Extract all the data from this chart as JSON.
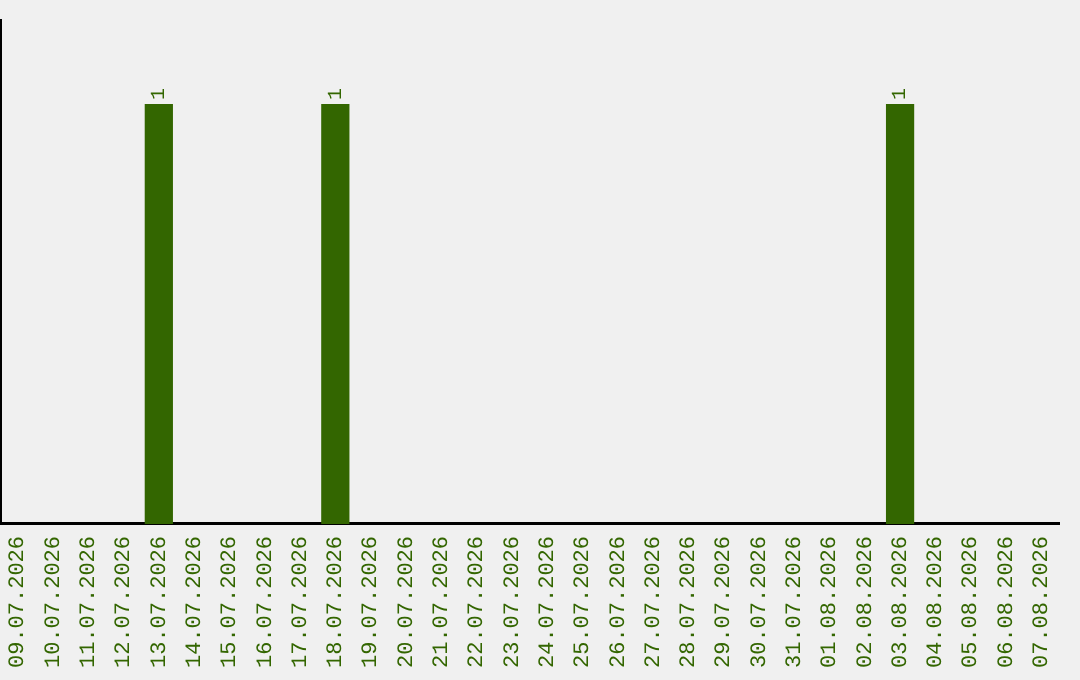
{
  "chart_data": {
    "type": "bar",
    "categories": [
      "09.07.2026",
      "10.07.2026",
      "11.07.2026",
      "12.07.2026",
      "13.07.2026",
      "14.07.2026",
      "15.07.2026",
      "16.07.2026",
      "17.07.2026",
      "18.07.2026",
      "19.07.2026",
      "20.07.2026",
      "21.07.2026",
      "22.07.2026",
      "23.07.2026",
      "24.07.2026",
      "25.07.2026",
      "26.07.2026",
      "27.07.2026",
      "28.07.2026",
      "29.07.2026",
      "30.07.2026",
      "31.07.2026",
      "01.08.2026",
      "02.08.2026",
      "03.08.2026",
      "04.08.2026",
      "05.08.2026",
      "06.08.2026",
      "07.08.2026"
    ],
    "values": [
      null,
      null,
      null,
      null,
      1,
      null,
      null,
      null,
      null,
      1,
      null,
      null,
      null,
      null,
      null,
      null,
      null,
      null,
      null,
      null,
      null,
      null,
      null,
      null,
      null,
      1,
      null,
      null,
      null,
      null
    ],
    "color": "#336600",
    "data_labels": true,
    "grid": false,
    "legend": false,
    "tick_labels": "x"
  }
}
